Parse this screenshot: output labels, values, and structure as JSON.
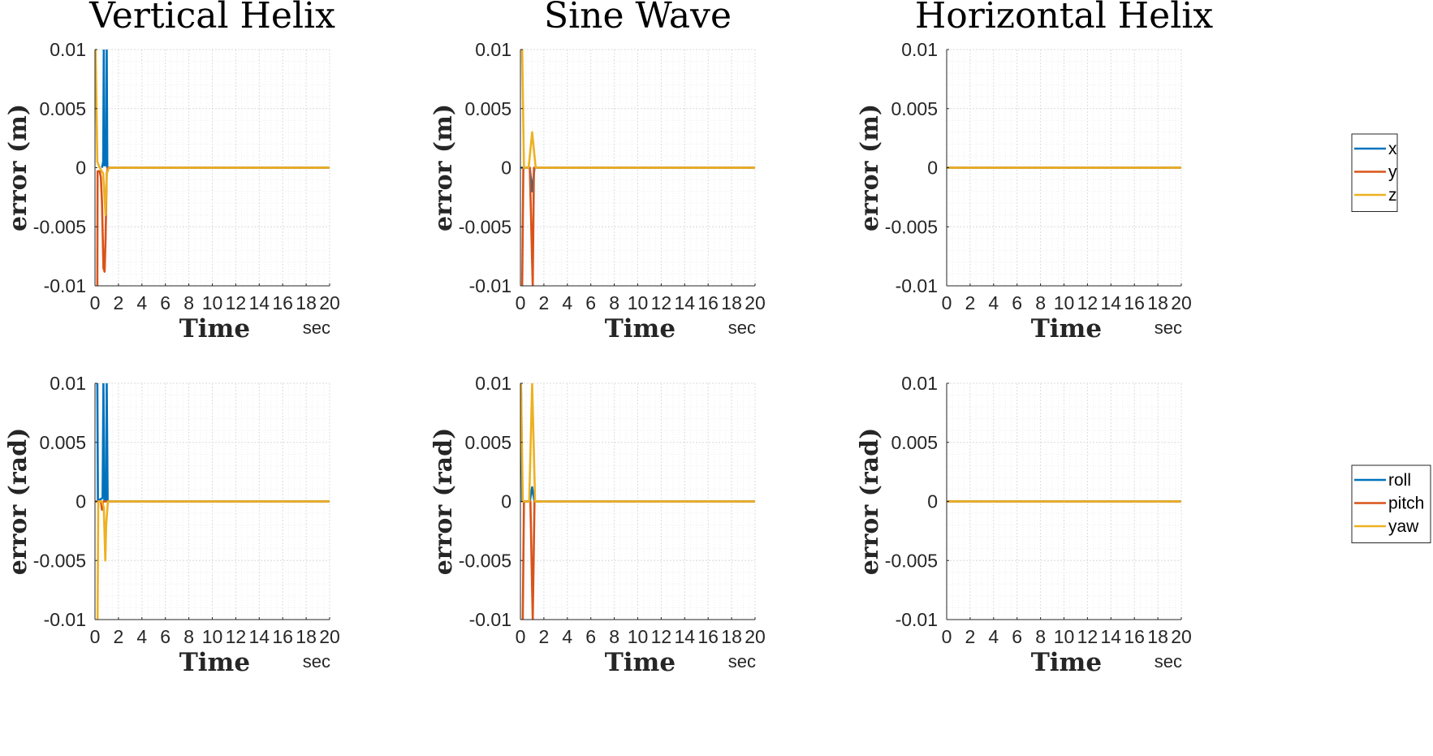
{
  "figure": {
    "columns": [
      "Vertical Helix",
      "Sine Wave",
      "Horizontal Helix"
    ],
    "row_ylabels": [
      "error (m)",
      "error (rad)"
    ],
    "xlabel": "Time",
    "xunit": "sec",
    "legends": [
      [
        "x",
        "y",
        "z"
      ],
      [
        "roll",
        "pitch",
        "yaw"
      ]
    ]
  },
  "chart_data": [
    {
      "type": "line",
      "title": "Vertical Helix",
      "xlabel": "Time",
      "xunit": "sec",
      "ylabel": "error (m)",
      "xlim": [
        0,
        20
      ],
      "ylim": [
        -0.01,
        0.01
      ],
      "xticks": [
        0,
        2,
        4,
        6,
        8,
        10,
        12,
        14,
        16,
        18,
        20
      ],
      "yticks": [
        0.01,
        0.005,
        0,
        -0.005,
        -0.01
      ],
      "ytick_labels": [
        "0.01",
        "0.005",
        "0",
        "-0.005",
        "-0.01"
      ],
      "grid": true,
      "series": [
        {
          "name": "x",
          "color": "#0072BD",
          "points": [
            [
              0.6,
              0
            ],
            [
              0.7,
              0.0005
            ],
            [
              0.75,
              0.01
            ],
            [
              0.8,
              0.0002
            ],
            [
              0.95,
              0.0002
            ],
            [
              1.0,
              0.01
            ],
            [
              1.05,
              0
            ],
            [
              20,
              0
            ]
          ]
        },
        {
          "name": "y",
          "color": "#D95319",
          "points": [
            [
              0.2,
              -0.01
            ],
            [
              0.22,
              -0.0003
            ],
            [
              0.4,
              -0.0003
            ],
            [
              0.5,
              -0.0008
            ],
            [
              0.6,
              -0.003
            ],
            [
              0.72,
              -0.0085
            ],
            [
              0.82,
              -0.0088
            ],
            [
              0.9,
              -0.006
            ],
            [
              1.0,
              -0.0005
            ],
            [
              1.1,
              0
            ],
            [
              20,
              0
            ]
          ]
        },
        {
          "name": "z",
          "color": "#EDB120",
          "points": [
            [
              0.05,
              0.01
            ],
            [
              0.2,
              0.0005
            ],
            [
              0.4,
              0
            ],
            [
              0.7,
              -0.0005
            ],
            [
              0.9,
              -0.004
            ],
            [
              1.0,
              -0.0005
            ],
            [
              1.2,
              0
            ],
            [
              20,
              0
            ]
          ]
        }
      ]
    },
    {
      "type": "line",
      "title": "Sine Wave",
      "xlabel": "Time",
      "xunit": "sec",
      "ylabel": "error (m)",
      "xlim": [
        0,
        20
      ],
      "ylim": [
        -0.01,
        0.01
      ],
      "xticks": [
        0,
        2,
        4,
        6,
        8,
        10,
        12,
        14,
        16,
        18,
        20
      ],
      "yticks": [
        0.01,
        0.005,
        0,
        -0.005,
        -0.01
      ],
      "ytick_labels": [
        "0.01",
        "0.005",
        "0",
        "-0.005",
        "-0.01"
      ],
      "grid": true,
      "series": [
        {
          "name": "x",
          "color": "#0072BD",
          "points": [
            [
              0,
              0
            ],
            [
              0.8,
              0
            ],
            [
              1.0,
              -0.002
            ],
            [
              1.2,
              0
            ],
            [
              20,
              0
            ]
          ]
        },
        {
          "name": "y",
          "color": "#D95319",
          "points": [
            [
              0.15,
              -0.01
            ],
            [
              0.25,
              0
            ],
            [
              0.8,
              0
            ],
            [
              1.05,
              -0.01
            ],
            [
              1.15,
              0
            ],
            [
              20,
              0
            ]
          ]
        },
        {
          "name": "z",
          "color": "#EDB120",
          "points": [
            [
              0.15,
              0.01
            ],
            [
              0.3,
              0
            ],
            [
              0.7,
              0
            ],
            [
              1.0,
              0.003
            ],
            [
              1.3,
              0
            ],
            [
              20,
              0
            ]
          ]
        }
      ]
    },
    {
      "type": "line",
      "title": "Horizontal Helix",
      "xlabel": "Time",
      "xunit": "sec",
      "ylabel": "error (m)",
      "xlim": [
        0,
        20
      ],
      "ylim": [
        -0.01,
        0.01
      ],
      "xticks": [
        0,
        2,
        4,
        6,
        8,
        10,
        12,
        14,
        16,
        18,
        20
      ],
      "yticks": [
        0.01,
        0.005,
        0,
        -0.005,
        -0.01
      ],
      "ytick_labels": [
        "0.01",
        "0.005",
        "0",
        "-0.005",
        "-0.01"
      ],
      "grid": true,
      "legend": {
        "entries": [
          "x",
          "y",
          "z"
        ],
        "location": "outside-right"
      },
      "series": [
        {
          "name": "x",
          "color": "#0072BD",
          "points": [
            [
              0,
              0
            ],
            [
              20,
              0
            ]
          ]
        },
        {
          "name": "y",
          "color": "#D95319",
          "points": [
            [
              0,
              0
            ],
            [
              20,
              0
            ]
          ]
        },
        {
          "name": "z",
          "color": "#EDB120",
          "points": [
            [
              0,
              0
            ],
            [
              20,
              0
            ]
          ]
        }
      ]
    },
    {
      "type": "line",
      "title": "",
      "xlabel": "Time",
      "xunit": "sec",
      "ylabel": "error (rad)",
      "xlim": [
        0,
        20
      ],
      "ylim": [
        -0.01,
        0.01
      ],
      "xticks": [
        0,
        2,
        4,
        6,
        8,
        10,
        12,
        14,
        16,
        18,
        20
      ],
      "yticks": [
        0.01,
        0.005,
        0,
        -0.005,
        -0.01
      ],
      "ytick_labels": [
        "0.01",
        "0.005",
        "0",
        "-0.005",
        "-0.01"
      ],
      "grid": true,
      "series": [
        {
          "name": "roll",
          "color": "#0072BD",
          "points": [
            [
              0.2,
              0.01
            ],
            [
              0.25,
              0.0001
            ],
            [
              0.5,
              0.0002
            ],
            [
              0.65,
              0.0003
            ],
            [
              0.72,
              0.01
            ],
            [
              0.8,
              0.0001
            ],
            [
              0.95,
              0.0001
            ],
            [
              1.0,
              0.01
            ],
            [
              1.08,
              0
            ],
            [
              20,
              0
            ]
          ]
        },
        {
          "name": "pitch",
          "color": "#D95319",
          "points": [
            [
              0,
              0
            ],
            [
              0.5,
              0
            ],
            [
              0.6,
              -0.0007
            ],
            [
              0.7,
              0
            ],
            [
              20,
              0
            ]
          ]
        },
        {
          "name": "yaw",
          "color": "#EDB120",
          "points": [
            [
              0.22,
              -0.01
            ],
            [
              0.28,
              0
            ],
            [
              0.6,
              0
            ],
            [
              0.75,
              -0.0005
            ],
            [
              0.88,
              -0.005
            ],
            [
              0.95,
              -0.002
            ],
            [
              1.1,
              0
            ],
            [
              20,
              0
            ]
          ]
        }
      ]
    },
    {
      "type": "line",
      "title": "",
      "xlabel": "Time",
      "xunit": "sec",
      "ylabel": "error (rad)",
      "xlim": [
        0,
        20
      ],
      "ylim": [
        -0.01,
        0.01
      ],
      "xticks": [
        0,
        2,
        4,
        6,
        8,
        10,
        12,
        14,
        16,
        18,
        20
      ],
      "yticks": [
        0.01,
        0.005,
        0,
        -0.005,
        -0.01
      ],
      "ytick_labels": [
        "0.01",
        "0.005",
        "0",
        "-0.005",
        "-0.01"
      ],
      "grid": true,
      "series": [
        {
          "name": "roll",
          "color": "#0072BD",
          "points": [
            [
              0.05,
              0.01
            ],
            [
              0.15,
              0
            ],
            [
              0.8,
              0
            ],
            [
              1.0,
              0.0012
            ],
            [
              1.2,
              0
            ],
            [
              20,
              0
            ]
          ]
        },
        {
          "name": "pitch",
          "color": "#D95319",
          "points": [
            [
              0.2,
              -0.01
            ],
            [
              0.3,
              0
            ],
            [
              0.85,
              0
            ],
            [
              1.05,
              -0.01
            ],
            [
              1.2,
              0
            ],
            [
              20,
              0
            ]
          ]
        },
        {
          "name": "yaw",
          "color": "#EDB120",
          "points": [
            [
              0.05,
              0.01
            ],
            [
              0.2,
              0
            ],
            [
              0.75,
              0
            ],
            [
              1.0,
              0.01
            ],
            [
              1.25,
              0
            ],
            [
              20,
              0
            ]
          ]
        }
      ]
    },
    {
      "type": "line",
      "title": "",
      "xlabel": "Time",
      "xunit": "sec",
      "ylabel": "error (rad)",
      "xlim": [
        0,
        20
      ],
      "ylim": [
        -0.01,
        0.01
      ],
      "xticks": [
        0,
        2,
        4,
        6,
        8,
        10,
        12,
        14,
        16,
        18,
        20
      ],
      "yticks": [
        0.01,
        0.005,
        0,
        -0.005,
        -0.01
      ],
      "ytick_labels": [
        "0.01",
        "0.005",
        "0",
        "-0.005",
        "-0.01"
      ],
      "grid": true,
      "legend": {
        "entries": [
          "roll",
          "pitch",
          "yaw"
        ],
        "location": "outside-right"
      },
      "series": [
        {
          "name": "roll",
          "color": "#0072BD",
          "points": [
            [
              0,
              0
            ],
            [
              20,
              0
            ]
          ]
        },
        {
          "name": "pitch",
          "color": "#D95319",
          "points": [
            [
              0,
              0
            ],
            [
              20,
              0
            ]
          ]
        },
        {
          "name": "yaw",
          "color": "#EDB120",
          "points": [
            [
              0,
              0
            ],
            [
              20,
              0
            ]
          ]
        }
      ]
    }
  ]
}
